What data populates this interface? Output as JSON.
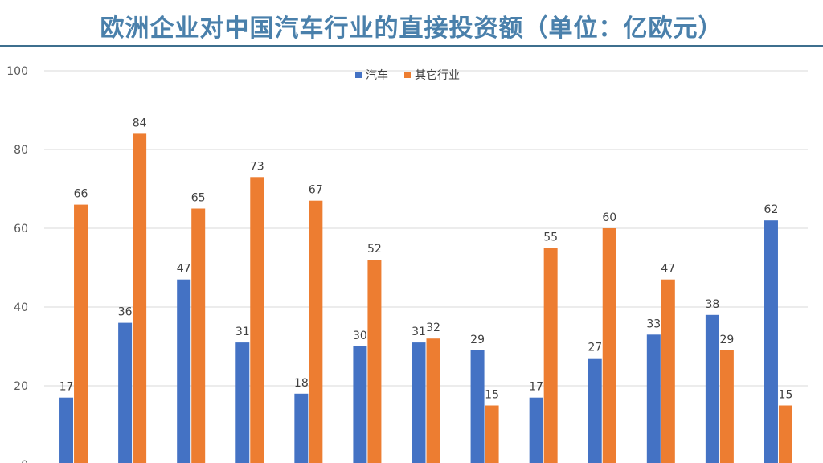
{
  "chart_data": {
    "type": "bar",
    "title": "欧洲企业对中国汽车行业的直接投资额（单位：亿欧元）",
    "xlabel": "",
    "ylabel": "",
    "ylim": [
      0,
      100
    ],
    "yticks": [
      0,
      20,
      40,
      60,
      80,
      100
    ],
    "grid": true,
    "legend": "top-center",
    "categories": [
      "",
      "",
      "",
      "",
      "",
      "",
      "",
      "",
      "",
      "",
      "",
      "",
      ""
    ],
    "series": [
      {
        "name": "汽车",
        "color": "#4472c4",
        "values": [
          17,
          36,
          47,
          31,
          18,
          30,
          31,
          29,
          17,
          27,
          33,
          38,
          62
        ]
      },
      {
        "name": "其它行业",
        "color": "#ed7d31",
        "values": [
          66,
          84,
          65,
          73,
          67,
          52,
          32,
          15,
          55,
          60,
          47,
          29,
          15
        ]
      }
    ]
  }
}
